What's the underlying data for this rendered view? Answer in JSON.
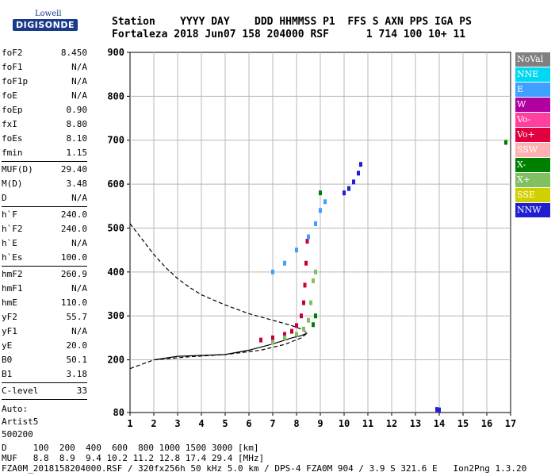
{
  "logo": {
    "line1": "Lowell",
    "line2": "DIGISONDE"
  },
  "header": {
    "row1": "Station    YYYY DAY    DDD HHMMSS P1  FFS S AXN PPS IGA PS",
    "row2": "Fortaleza 2018 Jun07 158 204000 RSF      1 714 100 10+ 11"
  },
  "params_group1": [
    {
      "name": "foF2",
      "value": "8.450"
    },
    {
      "name": "foF1",
      "value": "N/A"
    },
    {
      "name": "foF1p",
      "value": "N/A"
    },
    {
      "name": "foE",
      "value": "N/A"
    },
    {
      "name": "foEp",
      "value": "0.90"
    },
    {
      "name": "fxI",
      "value": "8.80"
    },
    {
      "name": "foEs",
      "value": "8.10"
    },
    {
      "name": "fmin",
      "value": "1.15"
    }
  ],
  "params_group2": [
    {
      "name": "MUF(D)",
      "value": "29.40"
    },
    {
      "name": "M(D)",
      "value": "3.48"
    },
    {
      "name": "D",
      "value": "N/A"
    }
  ],
  "params_group3": [
    {
      "name": "h`F",
      "value": "240.0"
    },
    {
      "name": "h`F2",
      "value": "240.0"
    },
    {
      "name": "h`E",
      "value": "N/A"
    },
    {
      "name": "h`Es",
      "value": "100.0"
    }
  ],
  "params_group4": [
    {
      "name": "hmF2",
      "value": "260.9"
    },
    {
      "name": "hmF1",
      "value": "N/A"
    },
    {
      "name": "hmE",
      "value": "110.0"
    },
    {
      "name": "yF2",
      "value": "55.7"
    },
    {
      "name": "yF1",
      "value": "N/A"
    },
    {
      "name": "yE",
      "value": "20.0"
    },
    {
      "name": "B0",
      "value": "50.1"
    },
    {
      "name": "B1",
      "value": "3.18"
    }
  ],
  "clevel": {
    "name": "C-level",
    "value": "33"
  },
  "auto": {
    "line1": "Auto:",
    "line2": "Artist5",
    "line3": "500200"
  },
  "legend": [
    {
      "label": "NoVal",
      "color": "#808080"
    },
    {
      "label": "NNE",
      "color": "#00d8f0"
    },
    {
      "label": "E",
      "color": "#40a0ff"
    },
    {
      "label": "W",
      "color": "#b000a0"
    },
    {
      "label": "Vo-",
      "color": "#ff40a0"
    },
    {
      "label": "Vo+",
      "color": "#e00040"
    },
    {
      "label": "SSW",
      "color": "#ffb0b0"
    },
    {
      "label": "X-",
      "color": "#008000"
    },
    {
      "label": "X+",
      "color": "#80c060"
    },
    {
      "label": "SSE",
      "color": "#d0d000"
    },
    {
      "label": "NNW",
      "color": "#2020d0"
    }
  ],
  "footer": {
    "row1": "D     100  200  400  600  800 1000 1500 3000 [km]",
    "row2": "MUF   8.8  8.9  9.4 10.2 11.2 12.8 17.4 29.4 [MHz]",
    "row3": "FZA0M_2018158204000.RSF / 320fx256h 50 kHz 5.0 km / DPS-4 FZA0M 904 / 3.9 S 321.6 E   Ion2Png 1.3.20"
  },
  "chart_data": {
    "type": "scatter",
    "xlim": [
      1,
      17
    ],
    "ylim": [
      80,
      900
    ],
    "x_ticks": [
      1,
      2,
      3,
      4,
      5,
      6,
      7,
      8,
      9,
      10,
      11,
      12,
      13,
      14,
      15,
      16,
      17
    ],
    "y_ticks": [
      80,
      200,
      300,
      400,
      500,
      600,
      700,
      800,
      900
    ],
    "grid": true,
    "series": [
      {
        "name": "Vo+",
        "color": "#c8003a",
        "points": [
          [
            6.5,
            245
          ],
          [
            7.0,
            250
          ],
          [
            7.5,
            258
          ],
          [
            7.8,
            265
          ],
          [
            8.0,
            278
          ],
          [
            8.2,
            300
          ],
          [
            8.3,
            330
          ],
          [
            8.35,
            370
          ],
          [
            8.4,
            420
          ],
          [
            8.45,
            470
          ]
        ]
      },
      {
        "name": "X+",
        "color": "#80c060",
        "points": [
          [
            7.0,
            240
          ],
          [
            7.5,
            250
          ],
          [
            8.0,
            258
          ],
          [
            8.3,
            270
          ],
          [
            8.5,
            290
          ],
          [
            8.6,
            330
          ],
          [
            8.7,
            380
          ],
          [
            8.8,
            400
          ]
        ]
      },
      {
        "name": "E",
        "color": "#40a0ff",
        "points": [
          [
            7.0,
            400
          ],
          [
            7.5,
            420
          ],
          [
            8.0,
            450
          ],
          [
            8.5,
            480
          ],
          [
            8.8,
            510
          ],
          [
            9.0,
            540
          ],
          [
            9.2,
            560
          ]
        ]
      },
      {
        "name": "NNW",
        "color": "#2020d0",
        "points": [
          [
            10.0,
            580
          ],
          [
            10.2,
            590
          ],
          [
            10.4,
            605
          ],
          [
            10.6,
            625
          ],
          [
            10.7,
            645
          ],
          [
            13.9,
            87
          ],
          [
            14.0,
            86
          ]
        ]
      },
      {
        "name": "X-",
        "color": "#008000",
        "points": [
          [
            8.7,
            280
          ],
          [
            8.8,
            300
          ],
          [
            9.0,
            580
          ],
          [
            16.8,
            695
          ]
        ]
      }
    ],
    "profile": {
      "points": [
        [
          1.0,
          510
        ],
        [
          1.5,
          475
        ],
        [
          2.0,
          440
        ],
        [
          2.5,
          410
        ],
        [
          3.0,
          385
        ],
        [
          3.5,
          365
        ],
        [
          4.0,
          348
        ],
        [
          5.0,
          325
        ],
        [
          6.0,
          305
        ],
        [
          7.0,
          290
        ],
        [
          7.8,
          278
        ],
        [
          8.2,
          270
        ],
        [
          8.45,
          261
        ],
        [
          8.2,
          250
        ],
        [
          7.5,
          235
        ],
        [
          6.5,
          222
        ],
        [
          5.0,
          212
        ],
        [
          3.5,
          207
        ],
        [
          2.0,
          200
        ],
        [
          1.0,
          180
        ]
      ]
    },
    "virtual_height_trace": {
      "points": [
        [
          2.0,
          200
        ],
        [
          3.0,
          208
        ],
        [
          4.0,
          210
        ],
        [
          5.0,
          212
        ],
        [
          6.0,
          222
        ],
        [
          7.0,
          236
        ],
        [
          7.8,
          250
        ],
        [
          8.2,
          255
        ],
        [
          8.45,
          261
        ]
      ]
    }
  }
}
